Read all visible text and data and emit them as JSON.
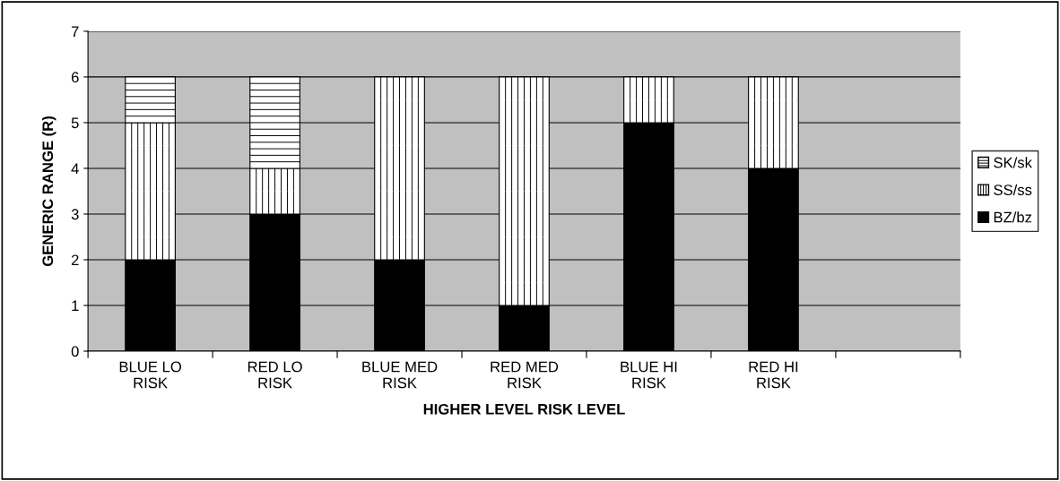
{
  "chart_data": {
    "type": "bar",
    "stacked": true,
    "xlabel": "HIGHER LEVEL RISK LEVEL",
    "ylabel": "GENERIC RANGE (R)",
    "categories": [
      "BLUE LO\nRISK",
      "RED LO\nRISK",
      "BLUE MED\nRISK",
      "RED MED\nRISK",
      "BLUE HI\nRISK",
      "RED HI\nRISK",
      null
    ],
    "series": [
      {
        "name": "BZ/bz",
        "color": "#000000",
        "values": [
          2,
          3,
          2,
          1,
          5,
          4,
          null
        ]
      },
      {
        "name": "SS/ss",
        "color": "#ffffff",
        "values": [
          3,
          1,
          4,
          5,
          1,
          2,
          null
        ]
      },
      {
        "name": "SK/sk",
        "color": "#ffffff",
        "values": [
          1,
          2,
          null,
          null,
          null,
          null,
          null
        ]
      }
    ],
    "ylim": [
      0,
      7
    ],
    "yticks": [
      0,
      1,
      2,
      3,
      4,
      5,
      6,
      7
    ],
    "grid": "y",
    "legend": "right"
  }
}
